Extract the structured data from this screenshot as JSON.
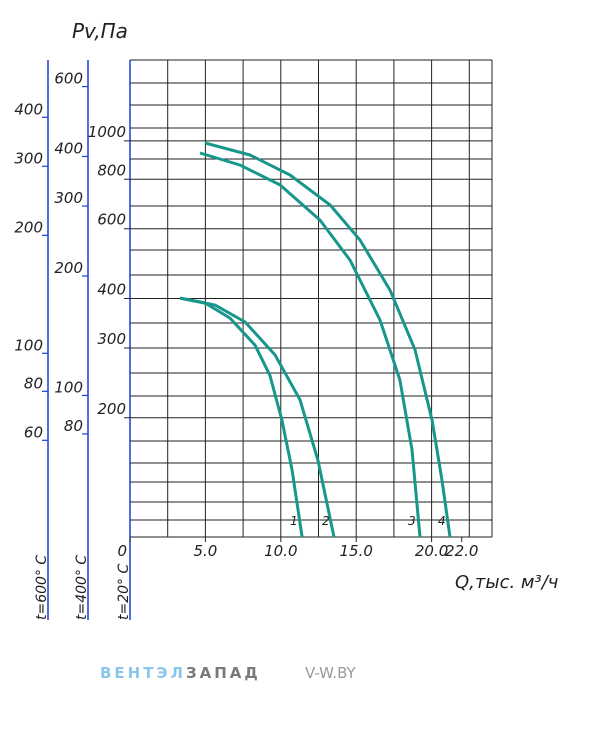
{
  "chart_data": {
    "type": "line",
    "ylabel": "Pv,Па",
    "xlabel": "Q,тыс. м³/ч",
    "ylog": true,
    "xlim": [
      0,
      24
    ],
    "ylim": [
      100,
      1600
    ],
    "xticks": [
      0,
      {
        "value": 5,
        "label": "5.0"
      },
      {
        "value": 10,
        "label": "10.0"
      },
      {
        "value": 15,
        "label": "15.0"
      },
      {
        "value": 20,
        "label": "20.0"
      },
      {
        "value": 22,
        "label": "22.0"
      }
    ],
    "yticks": [
      200,
      300,
      400,
      600,
      800,
      1000
    ],
    "axis_label": "t=20° C",
    "extra_axes": [
      {
        "label": "t=600° C",
        "ylim": [
          34,
          560
        ],
        "yticks": [
          60,
          80,
          100,
          200,
          300,
          400
        ]
      },
      {
        "label": "t=400° C",
        "ylim": [
          44,
          700
        ],
        "yticks": [
          80,
          100,
          200,
          300,
          400,
          600
        ]
      }
    ],
    "series": [
      {
        "name": "1",
        "color": "#17968c",
        "x": [
          3.32,
          4.97,
          6.63,
          8.29,
          9.28,
          10.08,
          10.74,
          11.41
        ],
        "values": [
          401,
          390,
          357,
          305,
          256,
          197,
          148,
          100
        ]
      },
      {
        "name": "2",
        "color": "#17968c",
        "x": [
          3.32,
          5.64,
          7.63,
          9.62,
          11.27,
          12.47,
          13.53
        ],
        "values": [
          401,
          385,
          349,
          288,
          222,
          156,
          100
        ]
      },
      {
        "name": "3",
        "color": "#17968c",
        "x": [
          4.64,
          7.29,
          9.95,
          12.6,
          14.59,
          16.58,
          17.9,
          18.7,
          19.23
        ],
        "values": [
          932,
          869,
          774,
          631,
          500,
          353,
          249,
          166,
          100
        ]
      },
      {
        "name": "4",
        "color": "#17968c",
        "x": [
          4.97,
          7.96,
          10.61,
          13.26,
          15.25,
          17.24,
          18.9,
          20.03,
          20.69,
          21.22
        ],
        "values": [
          988,
          921,
          820,
          689,
          562,
          420,
          297,
          197,
          139,
          100
        ]
      }
    ]
  },
  "footer": {
    "brand_part1": "ВЕНТЭЛ",
    "brand_part2": "ЗАПАД",
    "site": "V-W.BY"
  }
}
